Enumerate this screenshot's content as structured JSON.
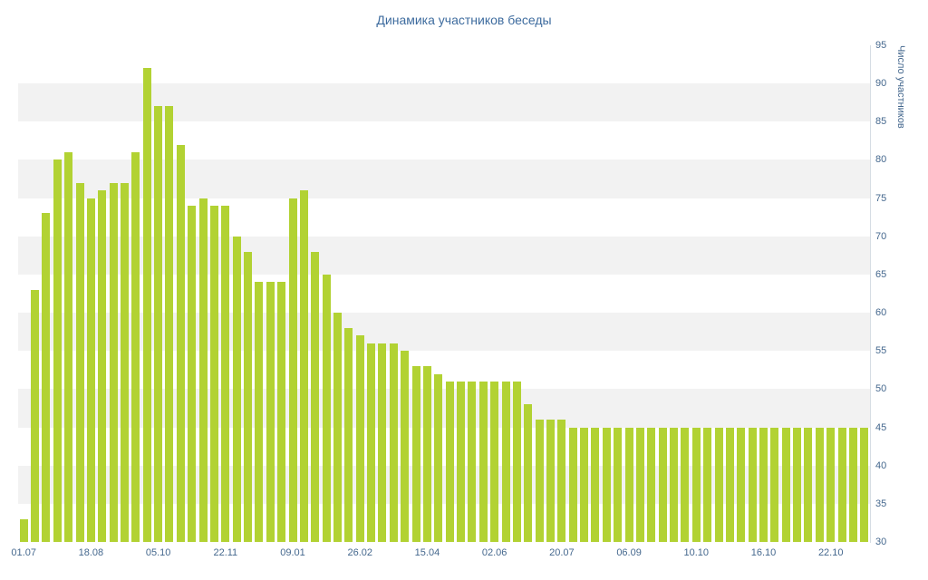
{
  "chart_data": {
    "type": "bar",
    "title": "Динамика участников беседы",
    "ylabel": "Число участников",
    "xlabel": "",
    "ylim": [
      30,
      95
    ],
    "ytick_step": 5,
    "x_tick_labels": [
      "01.07",
      "18.08",
      "05.10",
      "22.11",
      "09.01",
      "26.02",
      "15.04",
      "02.06",
      "20.07",
      "06.09",
      "10.10",
      "16.10",
      "22.10"
    ],
    "x_tick_every": 6,
    "values": [
      33,
      63,
      73,
      80,
      81,
      77,
      75,
      76,
      77,
      77,
      81,
      92,
      87,
      87,
      82,
      74,
      75,
      74,
      74,
      70,
      68,
      64,
      64,
      64,
      75,
      76,
      68,
      65,
      60,
      58,
      57,
      56,
      56,
      56,
      55,
      53,
      53,
      52,
      51,
      51,
      51,
      51,
      51,
      51,
      51,
      48,
      46,
      46,
      46,
      45,
      45,
      45,
      45,
      45,
      45,
      45,
      45,
      45,
      45,
      45,
      45,
      45,
      45,
      45,
      45,
      45,
      45,
      45,
      45,
      45,
      45,
      45,
      45,
      45,
      45,
      45
    ],
    "grid": "striped-horizontal-bands",
    "legend": "none",
    "colors": {
      "bar": "#b2d233",
      "stripe": "#f2f2f2",
      "axis_text": "#45688e",
      "title_text": "#3d6b9e",
      "axis_line": "#d6dde4",
      "background": "#ffffff"
    }
  }
}
